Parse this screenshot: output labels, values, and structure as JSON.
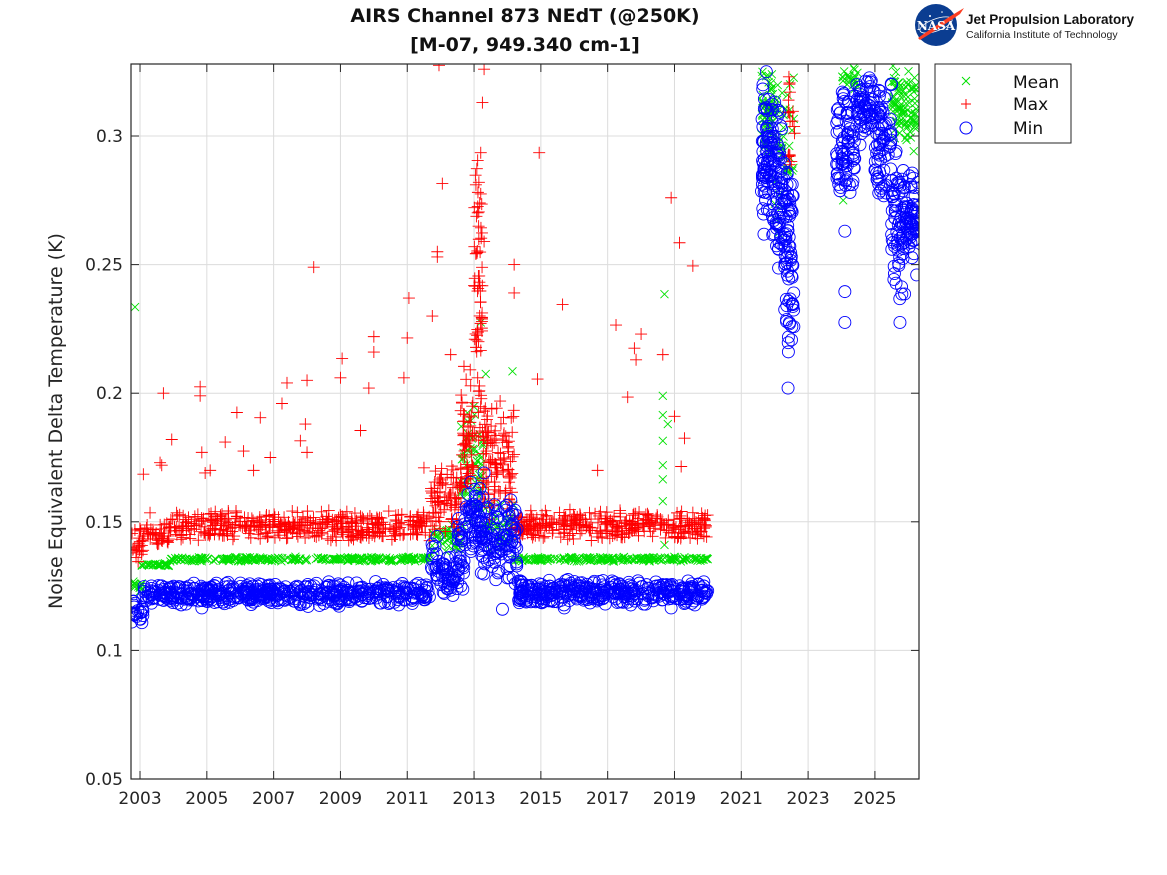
{
  "logo": {
    "nasa_text": "NASA",
    "org_name": "Jet Propulsion Laboratory",
    "org_sub": "California Institute of Technology"
  },
  "chart_data": {
    "type": "scatter",
    "title": "AIRS Channel 873 NEdT (@250K)",
    "subtitle": "[M-07, 949.340 cm-1]",
    "xlabel": "",
    "ylabel": "Noise Equivalent Delta Temperature (K)",
    "xlim": [
      2002.73,
      2026.32
    ],
    "ylim": [
      0.05,
      0.328
    ],
    "grid": true,
    "legend_position": "outside-top-right",
    "x_ticks": [
      2003,
      2005,
      2007,
      2009,
      2011,
      2013,
      2015,
      2017,
      2019,
      2021,
      2023,
      2025
    ],
    "x_tick_labels": [
      "2003",
      "2005",
      "2007",
      "2009",
      "2011",
      "2013",
      "2015",
      "2017",
      "2019",
      "2021",
      "2023",
      "2025"
    ],
    "y_ticks": [
      0.05,
      0.1,
      0.15,
      0.2,
      0.25,
      0.3
    ],
    "y_tick_labels": [
      "0.05",
      "0.1",
      "0.15",
      "0.2",
      "0.25",
      "0.3"
    ],
    "series": [
      {
        "name": "Mean",
        "marker": "x",
        "color": "#00e000",
        "bands": [
          {
            "x": [
              2002.75,
              2003.05
            ],
            "y": [
              0.122,
              0.128
            ],
            "n": 14
          },
          {
            "x": [
              2003.05,
              2003.9
            ],
            "y": [
              0.1325,
              0.134
            ],
            "n": 30
          },
          {
            "x": [
              2003.9,
              2011.7
            ],
            "y": [
              0.1345,
              0.1365
            ],
            "n": 260
          },
          {
            "x": [
              2011.7,
              2012.6
            ],
            "y": [
              0.137,
              0.15
            ],
            "n": 40
          },
          {
            "x": [
              2012.6,
              2013.3
            ],
            "y": [
              0.145,
              0.2
            ],
            "n": 60
          },
          {
            "x": [
              2013.3,
              2014.2
            ],
            "y": [
              0.138,
              0.16
            ],
            "n": 40
          },
          {
            "x": [
              2014.2,
              2020.0
            ],
            "y": [
              0.1345,
              0.1365
            ],
            "n": 200
          },
          {
            "x": [
              2021.6,
              2022.0
            ],
            "y": [
              0.29,
              0.328
            ],
            "n": 60
          },
          {
            "x": [
              2022.0,
              2022.6
            ],
            "y": [
              0.26,
              0.328
            ],
            "n": 40
          },
          {
            "x": [
              2024.0,
              2024.5
            ],
            "y": [
              0.318,
              0.328
            ],
            "n": 20
          },
          {
            "x": [
              2025.5,
              2025.8
            ],
            "y": [
              0.295,
              0.328
            ],
            "n": 40
          },
          {
            "x": [
              2025.8,
              2026.25
            ],
            "y": [
              0.29,
              0.328
            ],
            "n": 50
          }
        ],
        "outliers": [
          [
            2002.85,
            0.2335
          ],
          [
            2013.2,
            0.2275
          ],
          [
            2013.35,
            0.2075
          ],
          [
            2014.15,
            0.2085
          ],
          [
            2018.7,
            0.2385
          ],
          [
            2018.65,
            0.199
          ],
          [
            2018.65,
            0.1915
          ],
          [
            2018.8,
            0.188
          ],
          [
            2018.65,
            0.1815
          ],
          [
            2018.65,
            0.172
          ],
          [
            2018.65,
            0.1665
          ],
          [
            2018.65,
            0.158
          ],
          [
            2018.7,
            0.141
          ],
          [
            2024.05,
            0.275
          ]
        ]
      },
      {
        "name": "Max",
        "marker": "+",
        "color": "#ff0000",
        "bands": [
          {
            "x": [
              2002.75,
              2003.1
            ],
            "y": [
              0.133,
              0.148
            ],
            "n": 25
          },
          {
            "x": [
              2003.1,
              2003.9
            ],
            "y": [
              0.14,
              0.15
            ],
            "n": 40
          },
          {
            "x": [
              2003.9,
              2011.7
            ],
            "y": [
              0.142,
              0.155
            ],
            "n": 420
          },
          {
            "x": [
              2011.7,
              2012.6
            ],
            "y": [
              0.143,
              0.175
            ],
            "n": 80
          },
          {
            "x": [
              2012.6,
              2013.0
            ],
            "y": [
              0.15,
              0.215
            ],
            "n": 60
          },
          {
            "x": [
              2013.0,
              2013.25
            ],
            "y": [
              0.17,
              0.31
            ],
            "n": 70
          },
          {
            "x": [
              2013.25,
              2014.2
            ],
            "y": [
              0.145,
              0.2
            ],
            "n": 110
          },
          {
            "x": [
              2014.2,
              2020.0
            ],
            "y": [
              0.142,
              0.155
            ],
            "n": 330
          },
          {
            "x": [
              2022.4,
              2022.6
            ],
            "y": [
              0.285,
              0.328
            ],
            "n": 18
          }
        ],
        "outliers": [
          [
            2003.1,
            0.1685
          ],
          [
            2003.3,
            0.1535
          ],
          [
            2003.6,
            0.173
          ],
          [
            2003.65,
            0.172
          ],
          [
            2003.7,
            0.2
          ],
          [
            2003.95,
            0.182
          ],
          [
            2004.8,
            0.2025
          ],
          [
            2004.8,
            0.199
          ],
          [
            2004.85,
            0.177
          ],
          [
            2004.95,
            0.169
          ],
          [
            2005.55,
            0.181
          ],
          [
            2005.9,
            0.1925
          ],
          [
            2006.1,
            0.1775
          ],
          [
            2006.4,
            0.17
          ],
          [
            2006.6,
            0.1905
          ],
          [
            2006.9,
            0.175
          ],
          [
            2007.25,
            0.196
          ],
          [
            2007.4,
            0.204
          ],
          [
            2007.8,
            0.1815
          ],
          [
            2008.0,
            0.205
          ],
          [
            2008.2,
            0.249
          ],
          [
            2008.0,
            0.177
          ],
          [
            2009.05,
            0.2135
          ],
          [
            2009.0,
            0.206
          ],
          [
            2009.6,
            0.1855
          ],
          [
            2009.85,
            0.202
          ],
          [
            2010.0,
            0.222
          ],
          [
            2010.0,
            0.216
          ],
          [
            2010.9,
            0.206
          ],
          [
            2011.0,
            0.2215
          ],
          [
            2011.05,
            0.237
          ],
          [
            2011.75,
            0.23
          ],
          [
            2011.9,
            0.255
          ],
          [
            2011.9,
            0.253
          ],
          [
            2011.95,
            0.3275
          ],
          [
            2012.05,
            0.2815
          ],
          [
            2013.3,
            0.326
          ],
          [
            2013.25,
            0.313
          ],
          [
            2013.2,
            0.2935
          ],
          [
            2013.3,
            0.259
          ],
          [
            2014.2,
            0.25
          ],
          [
            2014.2,
            0.239
          ],
          [
            2014.95,
            0.2935
          ],
          [
            2014.9,
            0.2055
          ],
          [
            2015.65,
            0.2345
          ],
          [
            2016.7,
            0.17
          ],
          [
            2017.25,
            0.2265
          ],
          [
            2017.6,
            0.1985
          ],
          [
            2017.8,
            0.2175
          ],
          [
            2017.85,
            0.213
          ],
          [
            2018.0,
            0.223
          ],
          [
            2018.65,
            0.215
          ],
          [
            2018.9,
            0.276
          ],
          [
            2019.0,
            0.191
          ],
          [
            2019.15,
            0.2585
          ],
          [
            2019.3,
            0.1825
          ],
          [
            2019.55,
            0.2495
          ],
          [
            2019.2,
            0.1715
          ],
          [
            2011.5,
            0.171
          ],
          [
            2005.1,
            0.17
          ],
          [
            2007.95,
            0.188
          ],
          [
            2012.3,
            0.215
          ]
        ]
      },
      {
        "name": "Min",
        "marker": "o",
        "color": "#0000ff",
        "bands": [
          {
            "x": [
              2002.75,
              2003.1
            ],
            "y": [
              0.11,
              0.122
            ],
            "n": 20
          },
          {
            "x": [
              2003.1,
              2011.7
            ],
            "y": [
              0.117,
              0.127
            ],
            "n": 520
          },
          {
            "x": [
              2011.7,
              2011.9
            ],
            "y": [
              0.125,
              0.146
            ],
            "n": 14
          },
          {
            "x": [
              2011.9,
              2012.7
            ],
            "y": [
              0.121,
              0.138
            ],
            "n": 60
          },
          {
            "x": [
              2012.5,
              2012.75
            ],
            "y": [
              0.138,
              0.152
            ],
            "n": 16
          },
          {
            "x": [
              2012.75,
              2013.2
            ],
            "y": [
              0.135,
              0.168
            ],
            "n": 50
          },
          {
            "x": [
              2013.2,
              2014.3
            ],
            "y": [
              0.125,
              0.16
            ],
            "n": 110
          },
          {
            "x": [
              2014.3,
              2020.0
            ],
            "y": [
              0.117,
              0.128
            ],
            "n": 380
          },
          {
            "x": [
              2021.6,
              2022.0
            ],
            "y": [
              0.255,
              0.325
            ],
            "n": 90
          },
          {
            "x": [
              2022.0,
              2022.3
            ],
            "y": [
              0.24,
              0.318
            ],
            "n": 60
          },
          {
            "x": [
              2022.3,
              2022.6
            ],
            "y": [
              0.21,
              0.3
            ],
            "n": 70
          },
          {
            "x": [
              2023.85,
              2024.4
            ],
            "y": [
              0.27,
              0.32
            ],
            "n": 80
          },
          {
            "x": [
              2024.4,
              2025.0
            ],
            "y": [
              0.295,
              0.327
            ],
            "n": 60
          },
          {
            "x": [
              2025.0,
              2025.5
            ],
            "y": [
              0.27,
              0.325
            ],
            "n": 70
          },
          {
            "x": [
              2025.5,
              2025.9
            ],
            "y": [
              0.23,
              0.3
            ],
            "n": 70
          },
          {
            "x": [
              2025.9,
              2026.3
            ],
            "y": [
              0.25,
              0.29
            ],
            "n": 60
          }
        ],
        "outliers": [
          [
            2002.75,
            0.111
          ],
          [
            2021.75,
            0.325
          ],
          [
            2021.75,
            0.311
          ],
          [
            2022.4,
            0.202
          ],
          [
            2024.1,
            0.263
          ],
          [
            2024.1,
            0.2395
          ],
          [
            2024.1,
            0.2275
          ],
          [
            2025.75,
            0.2275
          ],
          [
            2026.25,
            0.246
          ],
          [
            2014.1,
            0.1585
          ],
          [
            2013.3,
            0.169
          ],
          [
            2013.85,
            0.116
          ],
          [
            2004.85,
            0.1165
          ],
          [
            2008.9,
            0.118
          ],
          [
            2018.9,
            0.1165
          ],
          [
            2015.7,
            0.1165
          ]
        ]
      }
    ]
  }
}
